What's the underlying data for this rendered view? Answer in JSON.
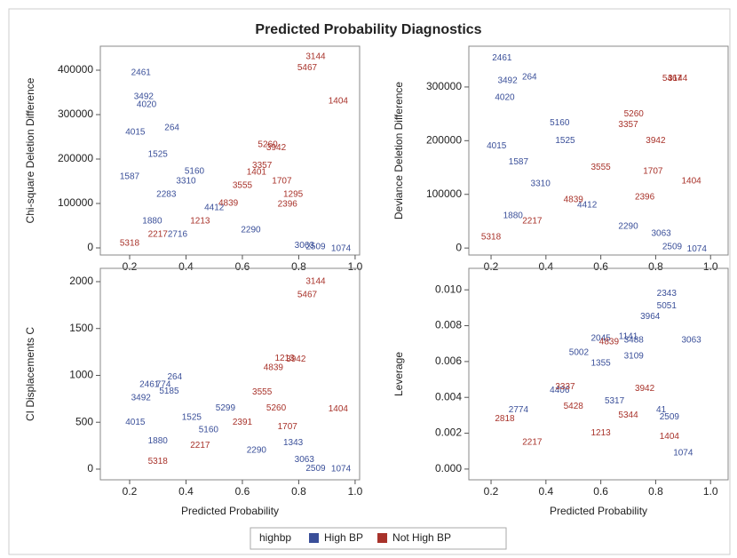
{
  "title": "Predicted Probability Diagnostics",
  "legend": {
    "title": "highbp",
    "items": [
      {
        "name": "High BP",
        "color": "#3a4f99"
      },
      {
        "name": "Not High BP",
        "color": "#a8322a"
      }
    ]
  },
  "chart_data": [
    {
      "type": "scatter",
      "ylabel": "Chi-square Deletion Difference",
      "xlim": [
        0.096,
        1.016
      ],
      "ylim": [
        -16000,
        454000
      ],
      "xticks": [
        0.2,
        0.4,
        0.6,
        0.8,
        {
          "value": 1,
          "label": "1.0"
        }
      ],
      "yticks": [
        0,
        100000,
        200000,
        300000,
        400000
      ],
      "series": [
        {
          "name": "High BP",
          "color": "#3a4f99",
          "x": [
            0.24,
            0.25,
            0.26,
            0.22,
            0.35,
            0.43,
            0.3,
            0.4,
            0.2,
            0.33,
            0.5,
            0.63,
            0.82,
            0.86,
            0.95,
            0.28,
            0.37
          ],
          "y": [
            394000,
            340000,
            322000,
            260000,
            270000,
            172000,
            210000,
            150000,
            160000,
            120000,
            90000,
            40000,
            5000,
            2000,
            -2000,
            60000,
            30000
          ],
          "labels": [
            "2461",
            "3492",
            "4020",
            "4015",
            "264",
            "5160",
            "1525",
            "3310",
            "1587",
            "2283",
            "4412",
            "2290",
            "3063",
            "2509",
            "1074",
            "1880",
            "2716"
          ]
        },
        {
          "name": "Not High BP",
          "color": "#a8322a",
          "x": [
            0.86,
            0.83,
            0.94,
            0.69,
            0.72,
            0.67,
            0.74,
            0.78,
            0.76,
            0.6,
            0.55,
            0.45,
            0.3,
            0.2,
            0.65
          ],
          "y": [
            430000,
            405000,
            330000,
            232000,
            225000,
            185000,
            150000,
            120000,
            98000,
            140000,
            100000,
            60000,
            30000,
            10000,
            170000
          ],
          "labels": [
            "3144",
            "5467",
            "1404",
            "5260",
            "3942",
            "3357",
            "1707",
            "1295",
            "2396",
            "3555",
            "4839",
            "1213",
            "2217",
            "5318",
            "1401"
          ]
        }
      ]
    },
    {
      "type": "scatter",
      "ylabel": "Deviance Deletion Difference",
      "xlim": [
        0.119,
        1.064
      ],
      "ylim": [
        -13000,
        376000
      ],
      "xticks": [
        0.2,
        0.4,
        0.6,
        0.8,
        {
          "value": 1,
          "label": "1.0"
        }
      ],
      "yticks": [
        0,
        100000,
        200000,
        300000
      ],
      "series": [
        {
          "name": "High BP",
          "color": "#3a4f99",
          "x": [
            0.24,
            0.34,
            0.26,
            0.25,
            0.45,
            0.47,
            0.22,
            0.3,
            0.38,
            0.55,
            0.82,
            0.86,
            0.95,
            0.7,
            0.28
          ],
          "y": [
            354000,
            318000,
            312000,
            280000,
            233000,
            200000,
            190000,
            160000,
            120000,
            80000,
            27000,
            2000,
            -2000,
            40000,
            60000
          ],
          "labels": [
            "2461",
            "264",
            "3492",
            "4020",
            "5160",
            "1525",
            "4015",
            "1587",
            "3310",
            "4412",
            "3063",
            "2509",
            "1074",
            "2290",
            "1880"
          ]
        },
        {
          "name": "Not High BP",
          "color": "#a8322a",
          "x": [
            0.86,
            0.88,
            0.93,
            0.8,
            0.79,
            0.72,
            0.7,
            0.76,
            0.6,
            0.5,
            0.35,
            0.2
          ],
          "y": [
            316000,
            316000,
            125000,
            200000,
            143000,
            250000,
            230000,
            95000,
            150000,
            90000,
            50000,
            20000
          ],
          "labels": [
            "5467",
            "3144",
            "1404",
            "3942",
            "1707",
            "5260",
            "3357",
            "2396",
            "3555",
            "4839",
            "2217",
            "5318"
          ]
        }
      ]
    },
    {
      "type": "scatter",
      "ylabel": "CI Displacements C",
      "xlabel": "Predicted Probability",
      "xlim": [
        0.096,
        1.016
      ],
      "ylim": [
        -114,
        2142
      ],
      "xticks": [
        0.2,
        0.4,
        0.6,
        0.8,
        {
          "value": 1,
          "label": "1.0"
        }
      ],
      "yticks": [
        0,
        500,
        1000,
        1500,
        2000
      ],
      "series": [
        {
          "name": "High BP",
          "color": "#3a4f99",
          "x": [
            0.36,
            0.27,
            0.32,
            0.34,
            0.54,
            0.24,
            0.22,
            0.42,
            0.48,
            0.3,
            0.65,
            0.82,
            0.86,
            0.95,
            0.78
          ],
          "y": [
            980,
            900,
            900,
            830,
            650,
            760,
            500,
            550,
            420,
            300,
            200,
            100,
            5,
            0,
            280
          ],
          "labels": [
            "264",
            "2461",
            "774",
            "5185",
            "5299",
            "3492",
            "4015",
            "1525",
            "5160",
            "1880",
            "2290",
            "3063",
            "2509",
            "1074",
            "1343"
          ]
        },
        {
          "name": "Not High BP",
          "color": "#a8322a",
          "x": [
            0.86,
            0.83,
            0.75,
            0.79,
            0.71,
            0.94,
            0.67,
            0.72,
            0.76,
            0.6,
            0.45,
            0.3
          ],
          "y": [
            2000,
            1860,
            1180,
            1170,
            1080,
            640,
            820,
            650,
            450,
            500,
            250,
            80
          ],
          "labels": [
            "3144",
            "5467",
            "1213",
            "3942",
            "4839",
            "1404",
            "3555",
            "5260",
            "1707",
            "2391",
            "2217",
            "5318"
          ]
        }
      ]
    },
    {
      "type": "scatter",
      "ylabel": "Leverage",
      "xlabel": "Predicted Probability",
      "xlim": [
        0.119,
        1.064
      ],
      "ylim": [
        -0.0006,
        0.0112
      ],
      "xticks": [
        0.2,
        0.4,
        0.6,
        0.8,
        {
          "value": 1,
          "label": "1.0"
        }
      ],
      "yticks": [
        {
          "value": 0,
          "label": "0.000"
        },
        {
          "value": 0.002,
          "label": "0.002"
        },
        {
          "value": 0.004,
          "label": "0.004"
        },
        {
          "value": 0.006,
          "label": "0.006"
        },
        {
          "value": 0.008,
          "label": "0.008"
        },
        {
          "value": 0.01,
          "label": "0.010"
        }
      ],
      "series": [
        {
          "name": "High BP",
          "color": "#3a4f99",
          "x": [
            0.84,
            0.84,
            0.78,
            0.93,
            0.7,
            0.72,
            0.6,
            0.52,
            0.72,
            0.6,
            0.82,
            0.85,
            0.9,
            0.3,
            0.45,
            0.65
          ],
          "y": [
            0.0098,
            0.0091,
            0.0085,
            0.0072,
            0.0074,
            0.0072,
            0.0073,
            0.0065,
            0.0063,
            0.0059,
            0.0033,
            0.0029,
            0.0009,
            0.0033,
            0.0044,
            0.0038
          ],
          "labels": [
            "2343",
            "5051",
            "3964",
            "3063",
            "1141",
            "3488",
            "2045",
            "5002",
            "3109",
            "1355",
            "41",
            "2509",
            "1074",
            "2774",
            "4406",
            "5317"
          ]
        },
        {
          "name": "Not High BP",
          "color": "#a8322a",
          "x": [
            0.63,
            0.76,
            0.47,
            0.85,
            0.5,
            0.25,
            0.6,
            0.7,
            0.35
          ],
          "y": [
            0.0071,
            0.0045,
            0.0046,
            0.0018,
            0.0035,
            0.0028,
            0.002,
            0.003,
            0.0015
          ],
          "labels": [
            "4839",
            "3942",
            "3337",
            "1404",
            "5428",
            "2818",
            "1213",
            "5344",
            "2217"
          ]
        }
      ]
    }
  ]
}
